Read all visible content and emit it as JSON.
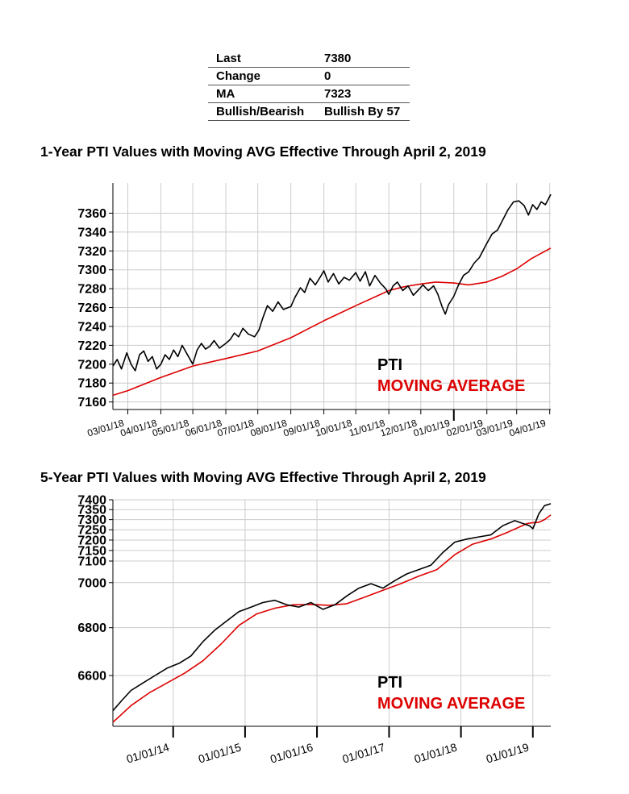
{
  "summary": [
    {
      "key": "Last",
      "value": "7380"
    },
    {
      "key": "Change",
      "value": "0"
    },
    {
      "key": "MA",
      "value": "7323"
    },
    {
      "key": "Bullish/Bearish",
      "value": "Bullish By 57"
    }
  ],
  "colors": {
    "pti": "#000000",
    "moving_average": "#dd0000",
    "grid": "#cccccc"
  },
  "chart_data": [
    {
      "type": "line",
      "title": "1-Year PTI Values with Moving AVG Effective Through April 2, 2019",
      "x_type": "date",
      "xlim": [
        "2018-02-15",
        "2019-04-02"
      ],
      "ylim": [
        7152,
        7392
      ],
      "y_ticks": [
        7160,
        7180,
        7200,
        7220,
        7240,
        7260,
        7280,
        7300,
        7320,
        7340,
        7360
      ],
      "x_ticks": [
        {
          "date": "2018-03-01",
          "label": "03/01/18"
        },
        {
          "date": "2018-04-01",
          "label": "04/01/18"
        },
        {
          "date": "2018-05-01",
          "label": "05/01/18"
        },
        {
          "date": "2018-06-01",
          "label": "06/01/18"
        },
        {
          "date": "2018-07-01",
          "label": "07/01/18"
        },
        {
          "date": "2018-08-01",
          "label": "08/01/18"
        },
        {
          "date": "2018-09-01",
          "label": "09/01/18"
        },
        {
          "date": "2018-10-01",
          "label": "10/01/18"
        },
        {
          "date": "2018-11-01",
          "label": "11/01/18"
        },
        {
          "date": "2018-12-01",
          "label": "12/01/18"
        },
        {
          "date": "2019-01-01",
          "label": "01/01/19"
        },
        {
          "date": "2019-02-01",
          "label": "02/01/19"
        },
        {
          "date": "2019-03-01",
          "label": "03/01/19"
        },
        {
          "date": "2019-04-01",
          "label": "04/01/19"
        }
      ],
      "major_ticks": [
        "2019-01-01"
      ],
      "legend_position": "bottom-right",
      "series": [
        {
          "name": "PTI",
          "color": "#000000",
          "points": [
            [
              "2018-02-15",
              7198
            ],
            [
              "2018-02-19",
              7205
            ],
            [
              "2018-02-23",
              7195
            ],
            [
              "2018-02-28",
              7212
            ],
            [
              "2018-03-04",
              7200
            ],
            [
              "2018-03-08",
              7193
            ],
            [
              "2018-03-12",
              7210
            ],
            [
              "2018-03-16",
              7214
            ],
            [
              "2018-03-20",
              7203
            ],
            [
              "2018-03-24",
              7208
            ],
            [
              "2018-03-28",
              7195
            ],
            [
              "2018-04-01",
              7200
            ],
            [
              "2018-04-05",
              7210
            ],
            [
              "2018-04-09",
              7205
            ],
            [
              "2018-04-13",
              7215
            ],
            [
              "2018-04-17",
              7208
            ],
            [
              "2018-04-21",
              7220
            ],
            [
              "2018-04-25",
              7212
            ],
            [
              "2018-05-01",
              7200
            ],
            [
              "2018-05-05",
              7215
            ],
            [
              "2018-05-09",
              7222
            ],
            [
              "2018-05-13",
              7216
            ],
            [
              "2018-05-17",
              7219
            ],
            [
              "2018-05-21",
              7225
            ],
            [
              "2018-05-26",
              7217
            ],
            [
              "2018-06-01",
              7222
            ],
            [
              "2018-06-05",
              7226
            ],
            [
              "2018-06-09",
              7233
            ],
            [
              "2018-06-13",
              7229
            ],
            [
              "2018-06-17",
              7238
            ],
            [
              "2018-06-22",
              7232
            ],
            [
              "2018-06-28",
              7229
            ],
            [
              "2018-07-02",
              7236
            ],
            [
              "2018-07-06",
              7250
            ],
            [
              "2018-07-10",
              7262
            ],
            [
              "2018-07-15",
              7256
            ],
            [
              "2018-07-20",
              7266
            ],
            [
              "2018-07-25",
              7258
            ],
            [
              "2018-08-01",
              7261
            ],
            [
              "2018-08-05",
              7271
            ],
            [
              "2018-08-10",
              7281
            ],
            [
              "2018-08-14",
              7276
            ],
            [
              "2018-08-19",
              7291
            ],
            [
              "2018-08-24",
              7284
            ],
            [
              "2018-08-29",
              7293
            ],
            [
              "2018-09-01",
              7299
            ],
            [
              "2018-09-05",
              7287
            ],
            [
              "2018-09-10",
              7296
            ],
            [
              "2018-09-15",
              7285
            ],
            [
              "2018-09-20",
              7292
            ],
            [
              "2018-09-25",
              7289
            ],
            [
              "2018-10-01",
              7297
            ],
            [
              "2018-10-05",
              7288
            ],
            [
              "2018-10-10",
              7298
            ],
            [
              "2018-10-14",
              7283
            ],
            [
              "2018-10-19",
              7294
            ],
            [
              "2018-10-24",
              7286
            ],
            [
              "2018-10-29",
              7280
            ],
            [
              "2018-11-01",
              7274
            ],
            [
              "2018-11-05",
              7283
            ],
            [
              "2018-11-09",
              7287
            ],
            [
              "2018-11-14",
              7278
            ],
            [
              "2018-11-19",
              7283
            ],
            [
              "2018-11-24",
              7273
            ],
            [
              "2018-11-29",
              7279
            ],
            [
              "2018-12-03",
              7284
            ],
            [
              "2018-12-08",
              7278
            ],
            [
              "2018-12-13",
              7283
            ],
            [
              "2018-12-17",
              7274
            ],
            [
              "2018-12-21",
              7261
            ],
            [
              "2018-12-24",
              7253
            ],
            [
              "2018-12-27",
              7263
            ],
            [
              "2019-01-01",
              7272
            ],
            [
              "2019-01-05",
              7283
            ],
            [
              "2019-01-10",
              7294
            ],
            [
              "2019-01-15",
              7298
            ],
            [
              "2019-01-20",
              7307
            ],
            [
              "2019-01-25",
              7313
            ],
            [
              "2019-02-01",
              7328
            ],
            [
              "2019-02-06",
              7338
            ],
            [
              "2019-02-11",
              7342
            ],
            [
              "2019-02-16",
              7353
            ],
            [
              "2019-02-21",
              7364
            ],
            [
              "2019-02-26",
              7372
            ],
            [
              "2019-03-03",
              7373
            ],
            [
              "2019-03-08",
              7368
            ],
            [
              "2019-03-12",
              7358
            ],
            [
              "2019-03-16",
              7369
            ],
            [
              "2019-03-20",
              7364
            ],
            [
              "2019-03-24",
              7372
            ],
            [
              "2019-03-28",
              7369
            ],
            [
              "2019-04-02",
              7380
            ]
          ]
        },
        {
          "name": "MOVING AVERAGE",
          "color": "#dd0000",
          "points": [
            [
              "2018-02-15",
              7167
            ],
            [
              "2018-03-01",
              7172
            ],
            [
              "2018-04-01",
              7186
            ],
            [
              "2018-05-01",
              7198
            ],
            [
              "2018-06-01",
              7206
            ],
            [
              "2018-07-01",
              7214
            ],
            [
              "2018-08-01",
              7228
            ],
            [
              "2018-09-01",
              7246
            ],
            [
              "2018-10-01",
              7262
            ],
            [
              "2018-11-01",
              7278
            ],
            [
              "2018-11-15",
              7282
            ],
            [
              "2018-12-01",
              7285
            ],
            [
              "2018-12-15",
              7287
            ],
            [
              "2019-01-01",
              7286
            ],
            [
              "2019-01-15",
              7284
            ],
            [
              "2019-02-01",
              7287
            ],
            [
              "2019-02-15",
              7293
            ],
            [
              "2019-03-01",
              7301
            ],
            [
              "2019-03-15",
              7312
            ],
            [
              "2019-04-02",
              7323
            ]
          ]
        }
      ]
    },
    {
      "type": "line",
      "title": "5-Year PTI Values with Moving AVG Effective Through April 2, 2019",
      "x_type": "date",
      "xlim": [
        "2013-03-01",
        "2019-04-02"
      ],
      "y_scale": "reciprocal",
      "ylim": [
        6400,
        7400
      ],
      "y_ticks": [
        6600,
        6800,
        7000,
        7100,
        7150,
        7200,
        7250,
        7300,
        7350,
        7400
      ],
      "x_ticks": [
        {
          "date": "2014-01-01",
          "label": "01/01/14"
        },
        {
          "date": "2015-01-01",
          "label": "01/01/15"
        },
        {
          "date": "2016-01-01",
          "label": "01/01/16"
        },
        {
          "date": "2017-01-01",
          "label": "01/01/17"
        },
        {
          "date": "2018-01-01",
          "label": "01/01/18"
        },
        {
          "date": "2019-01-01",
          "label": "01/01/19"
        }
      ],
      "legend_position": "bottom-right",
      "series": [
        {
          "name": "PTI",
          "color": "#000000",
          "points": [
            [
              "2013-03-01",
              6460
            ],
            [
              "2013-04-15",
              6500
            ],
            [
              "2013-06-01",
              6540
            ],
            [
              "2013-08-01",
              6570
            ],
            [
              "2013-10-01",
              6600
            ],
            [
              "2013-12-01",
              6630
            ],
            [
              "2014-02-01",
              6650
            ],
            [
              "2014-04-01",
              6680
            ],
            [
              "2014-06-01",
              6740
            ],
            [
              "2014-08-01",
              6790
            ],
            [
              "2014-10-01",
              6830
            ],
            [
              "2014-12-01",
              6870
            ],
            [
              "2015-02-01",
              6890
            ],
            [
              "2015-04-01",
              6910
            ],
            [
              "2015-06-01",
              6920
            ],
            [
              "2015-08-01",
              6900
            ],
            [
              "2015-10-01",
              6890
            ],
            [
              "2015-12-01",
              6910
            ],
            [
              "2016-02-01",
              6880
            ],
            [
              "2016-04-01",
              6900
            ],
            [
              "2016-06-01",
              6940
            ],
            [
              "2016-08-01",
              6975
            ],
            [
              "2016-10-01",
              6995
            ],
            [
              "2016-12-01",
              6975
            ],
            [
              "2017-02-01",
              7010
            ],
            [
              "2017-04-01",
              7040
            ],
            [
              "2017-06-01",
              7060
            ],
            [
              "2017-08-01",
              7080
            ],
            [
              "2017-10-01",
              7140
            ],
            [
              "2017-12-01",
              7190
            ],
            [
              "2018-02-01",
              7205
            ],
            [
              "2018-04-01",
              7215
            ],
            [
              "2018-06-01",
              7225
            ],
            [
              "2018-08-01",
              7270
            ],
            [
              "2018-10-01",
              7295
            ],
            [
              "2018-12-15",
              7270
            ],
            [
              "2019-01-01",
              7255
            ],
            [
              "2019-02-01",
              7330
            ],
            [
              "2019-03-01",
              7370
            ],
            [
              "2019-04-02",
              7380
            ]
          ]
        },
        {
          "name": "MOVING AVERAGE",
          "color": "#dd0000",
          "points": [
            [
              "2013-03-01",
              6415
            ],
            [
              "2013-06-01",
              6480
            ],
            [
              "2013-09-01",
              6530
            ],
            [
              "2013-12-01",
              6570
            ],
            [
              "2014-03-01",
              6610
            ],
            [
              "2014-06-01",
              6660
            ],
            [
              "2014-09-01",
              6730
            ],
            [
              "2014-12-01",
              6810
            ],
            [
              "2015-03-01",
              6860
            ],
            [
              "2015-06-01",
              6885
            ],
            [
              "2015-09-01",
              6900
            ],
            [
              "2015-12-01",
              6902
            ],
            [
              "2016-03-01",
              6898
            ],
            [
              "2016-06-01",
              6905
            ],
            [
              "2016-09-01",
              6935
            ],
            [
              "2016-12-01",
              6965
            ],
            [
              "2017-03-01",
              6995
            ],
            [
              "2017-06-01",
              7030
            ],
            [
              "2017-09-01",
              7060
            ],
            [
              "2017-12-01",
              7130
            ],
            [
              "2018-03-01",
              7180
            ],
            [
              "2018-06-01",
              7205
            ],
            [
              "2018-09-01",
              7240
            ],
            [
              "2018-12-01",
              7280
            ],
            [
              "2019-01-01",
              7285
            ],
            [
              "2019-02-01",
              7287
            ],
            [
              "2019-03-01",
              7300
            ],
            [
              "2019-04-02",
              7323
            ]
          ]
        }
      ]
    }
  ]
}
